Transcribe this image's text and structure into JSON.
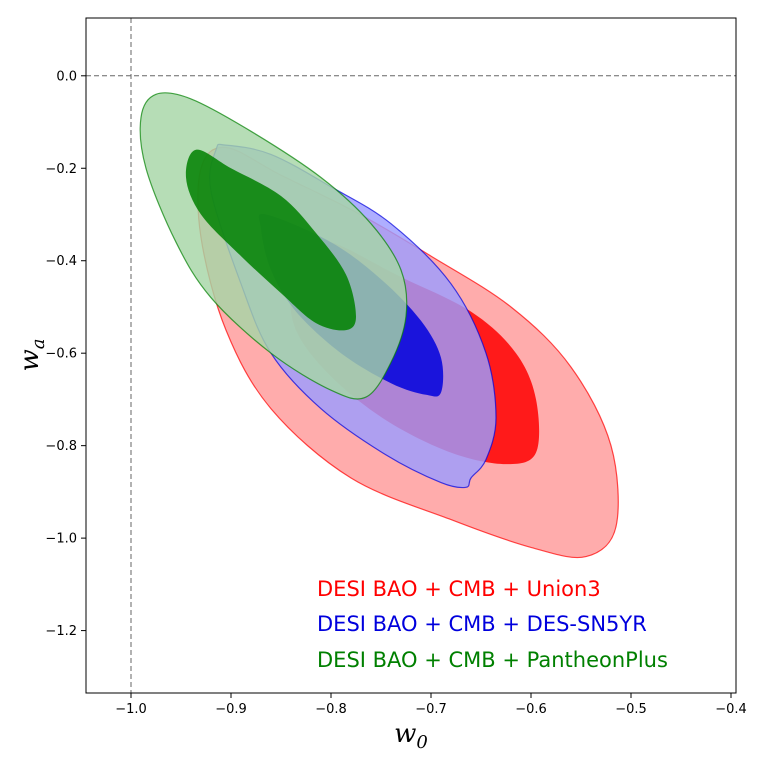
{
  "chart_data": {
    "type": "contour",
    "title": "",
    "xlabel": "w",
    "xlabel_sub": "0",
    "ylabel": "w",
    "ylabel_sub": "a",
    "xlim": [
      -1.045,
      -0.395
    ],
    "ylim": [
      -1.335,
      0.125
    ],
    "xticks": [
      -1.0,
      -0.9,
      -0.8,
      -0.7,
      -0.6,
      -0.5,
      -0.4
    ],
    "xtick_labels": [
      "−1.0",
      "−0.9",
      "−0.8",
      "−0.7",
      "−0.6",
      "−0.5",
      "−0.4"
    ],
    "yticks": [
      0.0,
      -0.2,
      -0.4,
      -0.6,
      -0.8,
      -1.0,
      -1.2
    ],
    "ytick_labels": [
      "0.0",
      "−0.2",
      "−0.4",
      "−0.6",
      "−0.8",
      "−1.0",
      "−1.2"
    ],
    "reference_lines": [
      {
        "orientation": "vertical",
        "x": -1.0
      },
      {
        "orientation": "horizontal",
        "y": 0.0
      }
    ],
    "series": [
      {
        "name": "DESI BAO + CMB + Union3",
        "color": "#ff0000",
        "inner_color": "#ff0000",
        "outer_color": "#ff9a9a",
        "outer_contour": [
          [
            -0.905,
            -0.155
          ],
          [
            -0.85,
            -0.215
          ],
          [
            -0.775,
            -0.295
          ],
          [
            -0.7,
            -0.39
          ],
          [
            -0.62,
            -0.5
          ],
          [
            -0.56,
            -0.63
          ],
          [
            -0.52,
            -0.8
          ],
          [
            -0.515,
            -0.975
          ],
          [
            -0.545,
            -1.04
          ],
          [
            -0.6,
            -1.02
          ],
          [
            -0.68,
            -0.96
          ],
          [
            -0.78,
            -0.87
          ],
          [
            -0.86,
            -0.72
          ],
          [
            -0.905,
            -0.55
          ],
          [
            -0.93,
            -0.35
          ],
          [
            -0.93,
            -0.2
          ]
        ],
        "inner_contour": [
          [
            -0.8,
            -0.36
          ],
          [
            -0.735,
            -0.43
          ],
          [
            -0.66,
            -0.51
          ],
          [
            -0.615,
            -0.6
          ],
          [
            -0.595,
            -0.7
          ],
          [
            -0.595,
            -0.815
          ],
          [
            -0.625,
            -0.84
          ],
          [
            -0.68,
            -0.815
          ],
          [
            -0.745,
            -0.745
          ],
          [
            -0.8,
            -0.65
          ],
          [
            -0.835,
            -0.55
          ],
          [
            -0.84,
            -0.45
          ],
          [
            -0.825,
            -0.38
          ]
        ]
      },
      {
        "name": "DESI BAO + CMB + DES-SN5YR",
        "color": "#0000dd",
        "inner_color": "#0000dd",
        "outer_color": "#9c9cff",
        "outer_contour": [
          [
            -0.905,
            -0.15
          ],
          [
            -0.86,
            -0.17
          ],
          [
            -0.8,
            -0.24
          ],
          [
            -0.74,
            -0.32
          ],
          [
            -0.68,
            -0.45
          ],
          [
            -0.645,
            -0.6
          ],
          [
            -0.635,
            -0.74
          ],
          [
            -0.645,
            -0.83
          ],
          [
            -0.66,
            -0.87
          ],
          [
            -0.665,
            -0.89
          ],
          [
            -0.69,
            -0.88
          ],
          [
            -0.745,
            -0.82
          ],
          [
            -0.81,
            -0.72
          ],
          [
            -0.86,
            -0.6
          ],
          [
            -0.89,
            -0.45
          ],
          [
            -0.92,
            -0.25
          ],
          [
            -0.915,
            -0.16
          ]
        ],
        "inner_contour": [
          [
            -0.865,
            -0.3
          ],
          [
            -0.8,
            -0.36
          ],
          [
            -0.75,
            -0.44
          ],
          [
            -0.71,
            -0.53
          ],
          [
            -0.69,
            -0.61
          ],
          [
            -0.69,
            -0.685
          ],
          [
            -0.705,
            -0.69
          ],
          [
            -0.74,
            -0.665
          ],
          [
            -0.79,
            -0.6
          ],
          [
            -0.835,
            -0.51
          ],
          [
            -0.86,
            -0.42
          ],
          [
            -0.87,
            -0.33
          ]
        ]
      },
      {
        "name": "DESI BAO + CMB + PantheonPlus",
        "color": "#008000",
        "inner_color": "#008000",
        "outer_color": "#a6d6a6",
        "outer_contour": [
          [
            -0.975,
            -0.04
          ],
          [
            -0.94,
            -0.05
          ],
          [
            -0.88,
            -0.12
          ],
          [
            -0.81,
            -0.22
          ],
          [
            -0.76,
            -0.32
          ],
          [
            -0.73,
            -0.42
          ],
          [
            -0.725,
            -0.52
          ],
          [
            -0.74,
            -0.62
          ],
          [
            -0.765,
            -0.695
          ],
          [
            -0.8,
            -0.68
          ],
          [
            -0.86,
            -0.6
          ],
          [
            -0.92,
            -0.48
          ],
          [
            -0.955,
            -0.36
          ],
          [
            -0.985,
            -0.2
          ],
          [
            -0.99,
            -0.09
          ]
        ],
        "inner_contour": [
          [
            -0.935,
            -0.16
          ],
          [
            -0.9,
            -0.2
          ],
          [
            -0.85,
            -0.26
          ],
          [
            -0.815,
            -0.34
          ],
          [
            -0.785,
            -0.43
          ],
          [
            -0.775,
            -0.52
          ],
          [
            -0.785,
            -0.55
          ],
          [
            -0.815,
            -0.535
          ],
          [
            -0.85,
            -0.47
          ],
          [
            -0.89,
            -0.39
          ],
          [
            -0.93,
            -0.3
          ],
          [
            -0.945,
            -0.22
          ]
        ]
      }
    ],
    "legend": {
      "location": "lower right",
      "entries": [
        "DESI BAO + CMB + Union3",
        "DESI BAO + CMB + DES-SN5YR",
        "DESI BAO + CMB + PantheonPlus"
      ]
    }
  }
}
